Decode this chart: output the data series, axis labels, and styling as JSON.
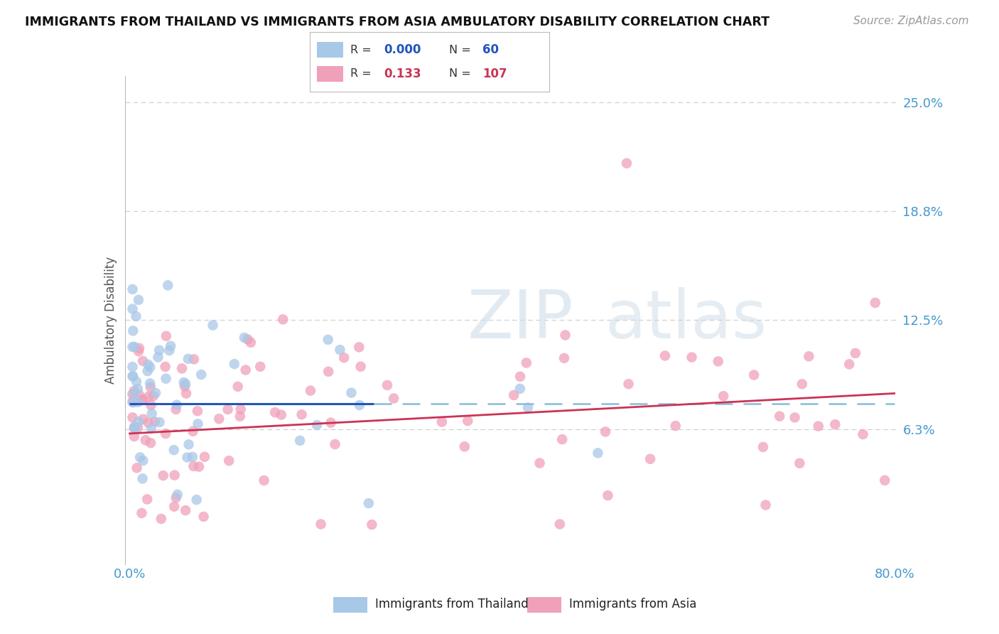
{
  "title": "IMMIGRANTS FROM THAILAND VS IMMIGRANTS FROM ASIA AMBULATORY DISABILITY CORRELATION CHART",
  "source": "Source: ZipAtlas.com",
  "ylabel": "Ambulatory Disability",
  "thailand_R": "0.000",
  "thailand_N": "60",
  "asia_R": "0.133",
  "asia_N": "107",
  "thailand_color": "#a8c8e8",
  "asia_color": "#f0a0b8",
  "thailand_line_color": "#2255bb",
  "asia_line_color": "#cc3355",
  "dashed_line_color": "#88bbdd",
  "grid_color": "#cccccc",
  "background_color": "#ffffff",
  "title_color": "#111111",
  "axis_label_color": "#555555",
  "tick_label_color": "#4499cc",
  "xlim": [
    0.0,
    0.8
  ],
  "ylim": [
    0.0,
    0.265
  ],
  "y_ticks": [
    0.0625,
    0.125,
    0.1875,
    0.25
  ],
  "y_tick_labels": [
    "6.3%",
    "12.5%",
    "18.8%",
    "25.0%"
  ],
  "x_ticks": [
    0.0,
    0.1,
    0.2,
    0.3,
    0.4,
    0.5,
    0.6,
    0.7,
    0.8
  ],
  "x_tick_labels": [
    "0.0%",
    "",
    "",
    "",
    "",
    "",
    "",
    "",
    "80.0%"
  ],
  "thai_line_xstart": 0.0,
  "thai_line_xend": 0.255,
  "thai_line_y": 0.077,
  "asia_line_xstart": 0.0,
  "asia_line_xend": 0.8,
  "asia_line_ystart": 0.06,
  "asia_line_yend": 0.083,
  "dashed_line_y": 0.077,
  "dashed_line_xstart": 0.255,
  "dashed_line_xend": 0.8,
  "watermark_text": "ZIPatlas",
  "watermark_color": "#d0dde8",
  "watermark_alpha": 0.6
}
